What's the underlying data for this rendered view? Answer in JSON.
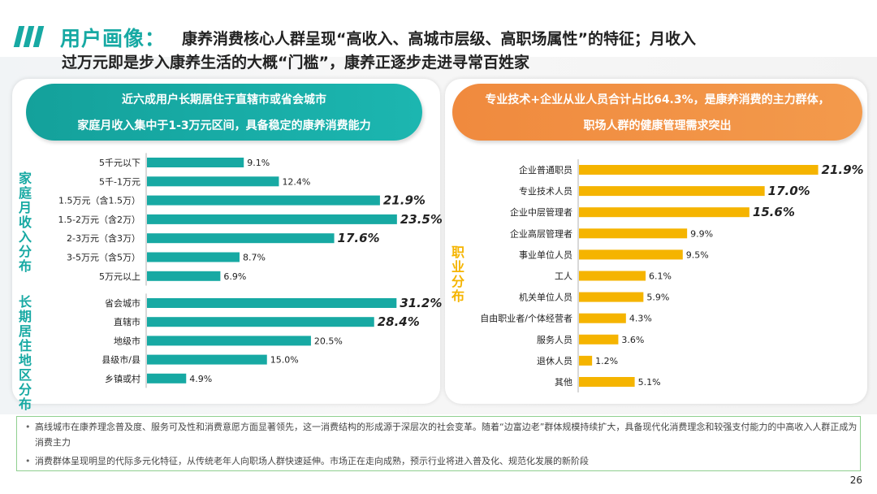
{
  "header": {
    "title_main": "用户画像：",
    "title_line1": "康养消费核心人群呈现“高收入、高城市层级、高职场属性”的特征；月收入",
    "title_line2": "过万元即是步入康养生活的大概“门槛”，康养正逐步走进寻常百姓家"
  },
  "left_panel": {
    "pill_line1": "近六成用户长期居住于直辖市或省会城市",
    "pill_line2": "家庭月收入集中于1-3万元区间，具备稳定的康养消费能力",
    "income_axis_label": "家庭月收入分布",
    "region_axis_label": "长期居住地区分布"
  },
  "right_panel": {
    "pill_line1": "专业技术+企业从业人员合计占比64.3%，是康养消费的主力群体，",
    "pill_line2": "职场人群的健康管理需求突出",
    "job_axis_label": "职业分布"
  },
  "colors": {
    "teal": "#17a9a3",
    "orange": "#f5b400",
    "pill_orange": "#f08a3e"
  },
  "chart_data": [
    {
      "type": "bar",
      "orientation": "horizontal",
      "group": "家庭月收入分布",
      "categories": [
        "5千元以下",
        "5千-1万元",
        "1.5万元（含1.5万）",
        "1.5-2万元（含2万）",
        "2-3万元（含3万）",
        "3-5万元（含5万）",
        "5万元以上"
      ],
      "values": [
        9.1,
        12.4,
        21.9,
        23.5,
        17.6,
        8.7,
        6.9
      ],
      "labels": [
        "9.1%",
        "12.4%",
        "21.9%",
        "23.5%",
        "17.6%",
        "8.7%",
        "6.9%"
      ],
      "highlight": [
        false,
        false,
        true,
        true,
        true,
        false,
        false
      ],
      "color": "#17a9a3"
    },
    {
      "type": "bar",
      "orientation": "horizontal",
      "group": "长期居住地区分布",
      "categories": [
        "省会城市",
        "直辖市",
        "地级市",
        "县级市/县",
        "乡镇或村"
      ],
      "values": [
        31.2,
        28.4,
        20.5,
        15.0,
        4.9
      ],
      "labels": [
        "31.2%",
        "28.4%",
        "20.5%",
        "15.0%",
        "4.9%"
      ],
      "highlight": [
        true,
        true,
        false,
        false,
        false
      ],
      "color": "#17a9a3"
    },
    {
      "type": "bar",
      "orientation": "horizontal",
      "group": "职业分布",
      "categories": [
        "企业普通职员",
        "专业技术人员",
        "企业中层管理者",
        "企业高层管理者",
        "事业单位人员",
        "工人",
        "机关单位人员",
        "自由职业者/个体经营者",
        "服务人员",
        "退休人员",
        "其他"
      ],
      "values": [
        21.9,
        17.0,
        15.6,
        9.9,
        9.5,
        6.1,
        5.9,
        4.3,
        3.6,
        1.2,
        5.1
      ],
      "labels": [
        "21.9%",
        "17.0%",
        "15.6%",
        "9.9%",
        "9.5%",
        "6.1%",
        "5.9%",
        "4.3%",
        "3.6%",
        "1.2%",
        "5.1%"
      ],
      "highlight": [
        true,
        true,
        true,
        false,
        false,
        false,
        false,
        false,
        false,
        false,
        false
      ],
      "color": "#f5b400"
    }
  ],
  "notes": [
    "高线城市在康养理念普及度、服务可及性和消费意愿方面显著领先，这一消费结构的形成源于深层次的社会变革。随着“边富边老”群体规模持续扩大，具备现代化消费理念和较强支付能力的中高收入人群正成为消费主力",
    "消费群体呈现明显的代际多元化特征，从传统老年人向职场人群快速延伸。市场正在走向成熟，预示行业将进入普及化、规范化发展的新阶段"
  ],
  "page_number": "26"
}
